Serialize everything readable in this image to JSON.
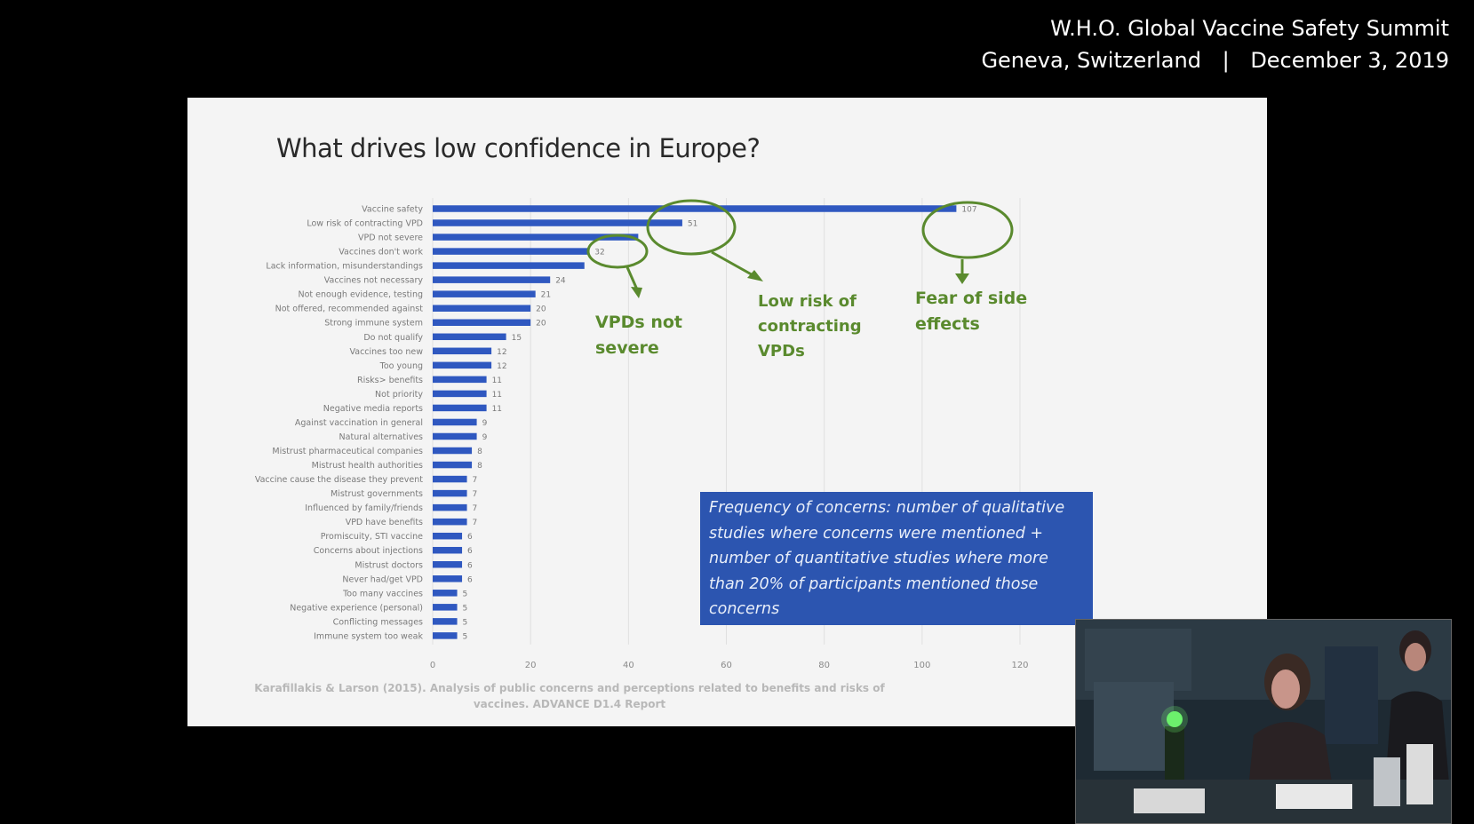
{
  "header": {
    "title": "W.H.O. Global Vaccine Safety Summit",
    "location": "Geneva, Switzerland",
    "separator": "|",
    "date": "December 3, 2019"
  },
  "slide": {
    "title": "What drives low confidence in Europe?",
    "callout": "Frequency of concerns: number of qualitative studies where concerns were mentioned + number of quantitative studies where more than 20% of participants mentioned those concerns",
    "annotations": {
      "vpd_not_severe": "VPDs not severe",
      "low_risk": "Low risk of contracting VPDs",
      "fear_side_effects": "Fear of side effects"
    },
    "citation": "Karafillakis & Larson (2015). Analysis of public concerns and perceptions related to benefits and risks of vaccines. ADVANCE D1.4 Report"
  },
  "colors": {
    "bar": "#2f58c0",
    "annotation": "#5a8a2e",
    "callout_bg": "#2c55b0"
  },
  "chart_data": {
    "type": "bar",
    "orientation": "horizontal",
    "categories": [
      "Vaccine safety",
      "Low risk of contracting VPD",
      "VPD not severe",
      "Vaccines don't work",
      "Lack information, misunderstandings",
      "Vaccines not necessary",
      "Not enough evidence, testing",
      "Not offered, recommended against",
      "Strong immune system",
      "Do not qualify",
      "Vaccines too new",
      "Too young",
      "Risks> benefits",
      "Not priority",
      "Negative media reports",
      "Against vaccination in general",
      "Natural alternatives",
      "Mistrust pharmaceutical companies",
      "Mistrust health authorities",
      "Vaccine cause the disease they prevent",
      "Mistrust governments",
      "Influenced by family/friends",
      "VPD have benefits",
      "Promiscuity, STI vaccine",
      "Concerns about injections",
      "Mistrust doctors",
      "Never had/get VPD",
      "Too many vaccines",
      "Negative experience (personal)",
      "Conflicting messages",
      "Immune system too weak"
    ],
    "values": [
      107,
      51,
      null,
      32,
      null,
      24,
      21,
      20,
      20,
      15,
      12,
      12,
      11,
      11,
      11,
      9,
      9,
      8,
      8,
      7,
      7,
      7,
      7,
      6,
      6,
      6,
      6,
      5,
      5,
      5,
      5
    ],
    "value_labels": [
      "107",
      "51",
      "",
      "32",
      "",
      "24",
      "21",
      "20",
      "20",
      "15",
      "12",
      "12",
      "11",
      "11",
      "11",
      "9",
      "9",
      "8",
      "8",
      "7",
      "7",
      "7",
      "7",
      "6",
      "6",
      "6",
      "6",
      "5",
      "5",
      "5",
      "5"
    ],
    "xticks": [
      "0",
      "20",
      "40",
      "60",
      "80",
      "100",
      "120"
    ],
    "xlim": [
      0,
      120
    ],
    "grid": true
  }
}
